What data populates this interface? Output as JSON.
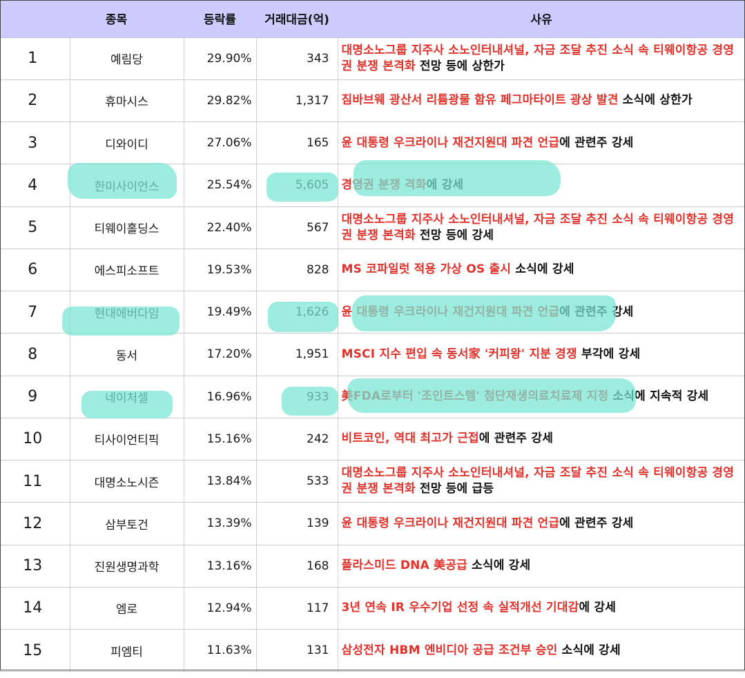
{
  "headers": {
    "name": "종목",
    "rate": "등락률",
    "volume": "거래대금(억)",
    "reason": "사유"
  },
  "rows": [
    {
      "rank": "1",
      "name": "예림당",
      "rate": "29.90%",
      "volume": "343",
      "reason_red": "대명소노그룹 지주사 소노인터내셔널, 자금 조달 추진 소식 속 티웨이항공 경영권 분쟁 본격화",
      "reason_rest": " 전망 등에 상한가"
    },
    {
      "rank": "2",
      "name": "휴마시스",
      "rate": "29.82%",
      "volume": "1,317",
      "reason_red": "짐바브웨 광산서 리튬광물 함유 페그마타이트 광상 발견",
      "reason_rest": " 소식에 상한가"
    },
    {
      "rank": "3",
      "name": "디와이디",
      "rate": "27.06%",
      "volume": "165",
      "reason_red": "윤 대통령 우크라이나 재건지원대 파견 언급",
      "reason_rest": "에 관련주 강세"
    },
    {
      "rank": "4",
      "name": "한미사이언스",
      "rate": "25.54%",
      "volume": "5,605",
      "reason_red": "경영권 분쟁 격화",
      "reason_rest": "에 강세"
    },
    {
      "rank": "5",
      "name": "티웨이홀딩스",
      "rate": "22.40%",
      "volume": "567",
      "reason_red": "대명소노그룹 지주사 소노인터내셔널, 자금 조달 추진 소식 속 티웨이항공 경영권 분쟁 본격화",
      "reason_rest": " 전망 등에 강세"
    },
    {
      "rank": "6",
      "name": "에스피소프트",
      "rate": "19.53%",
      "volume": "828",
      "reason_red": "MS 코파일럿 적용 가상 OS 출시",
      "reason_rest": " 소식에 강세"
    },
    {
      "rank": "7",
      "name": "현대에버다임",
      "rate": "19.49%",
      "volume": "1,626",
      "reason_red": "윤 대통령 우크라이나 재건지원대 파견 언급",
      "reason_rest": "에 관련주 강세"
    },
    {
      "rank": "8",
      "name": "동서",
      "rate": "17.20%",
      "volume": "1,951",
      "reason_red": "MSCI 지수 편입 속 동서家 '커피왕' 지분 경쟁",
      "reason_rest": " 부각에 강세"
    },
    {
      "rank": "9",
      "name": "네이처셀",
      "rate": "16.96%",
      "volume": "933",
      "reason_red": "美FDA로부터 '조인트스템' 첨단재생의료치료제 지정",
      "reason_rest": " 소식에 지속적 강세"
    },
    {
      "rank": "10",
      "name": "티사이언티픽",
      "rate": "15.16%",
      "volume": "242",
      "reason_red": "비트코인, 역대 최고가 근접",
      "reason_rest": "에 관련주 강세"
    },
    {
      "rank": "11",
      "name": "대명소노시즌",
      "rate": "13.84%",
      "volume": "533",
      "reason_red": "대명소노그룹 지주사 소노인터내셔널, 자금 조달 추진 소식 속 티웨이항공 경영권 분쟁 본격화",
      "reason_rest": " 전망 등에 급등"
    },
    {
      "rank": "12",
      "name": "삼부토건",
      "rate": "13.39%",
      "volume": "139",
      "reason_red": "윤 대통령 우크라이나 재건지원대 파견 언급",
      "reason_rest": "에 관련주 강세"
    },
    {
      "rank": "13",
      "name": "진원생명과학",
      "rate": "13.16%",
      "volume": "168",
      "reason_red": "플라스미드 DNA 美공급",
      "reason_rest": " 소식에 강세"
    },
    {
      "rank": "14",
      "name": "엠로",
      "rate": "12.94%",
      "volume": "117",
      "reason_red": "3년 연속 IR 우수기업 선정 속 실적개선 기대감",
      "reason_rest": "에 강세"
    },
    {
      "rank": "15",
      "name": "피엠티",
      "rate": "11.63%",
      "volume": "131",
      "reason_red": "삼성전자 HBM 엔비디아 공급 조건부 승인",
      "reason_rest": " 소식에 강세"
    }
  ],
  "colors": {
    "header_bg": "#ccccff",
    "highlight_text": "#e0312a",
    "marker": "#76e4d2"
  }
}
